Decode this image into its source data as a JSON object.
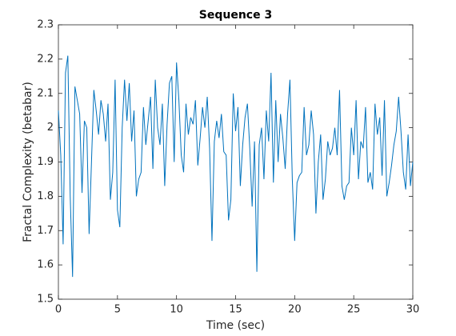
{
  "chart_data": {
    "type": "line",
    "title": "Sequence 3",
    "x_label": "Time (sec)",
    "y_label": "Fractal Complexity (betabar)",
    "x": [
      0,
      0.2,
      0.4,
      0.6,
      0.8,
      1,
      1.2,
      1.4,
      1.6,
      1.8,
      2,
      2.2,
      2.4,
      2.6,
      2.8,
      3,
      3.2,
      3.4,
      3.6,
      3.8,
      4,
      4.2,
      4.4,
      4.6,
      4.8,
      5,
      5.2,
      5.4,
      5.6,
      5.8,
      6,
      6.2,
      6.4,
      6.6,
      6.8,
      7,
      7.2,
      7.4,
      7.6,
      7.8,
      8,
      8.2,
      8.4,
      8.6,
      8.8,
      9,
      9.2,
      9.4,
      9.6,
      9.8,
      10,
      10.2,
      10.4,
      10.6,
      10.8,
      11,
      11.2,
      11.4,
      11.6,
      11.8,
      12,
      12.2,
      12.4,
      12.6,
      12.8,
      13,
      13.2,
      13.4,
      13.6,
      13.8,
      14,
      14.2,
      14.4,
      14.6,
      14.8,
      15,
      15.2,
      15.4,
      15.6,
      15.8,
      16,
      16.2,
      16.4,
      16.6,
      16.8,
      17,
      17.2,
      17.4,
      17.6,
      17.8,
      18,
      18.2,
      18.4,
      18.6,
      18.8,
      19,
      19.2,
      19.4,
      19.6,
      19.8,
      20,
      20.2,
      20.4,
      20.6,
      20.8,
      21,
      21.2,
      21.4,
      21.6,
      21.8,
      22,
      22.2,
      22.4,
      22.6,
      22.8,
      23,
      23.2,
      23.4,
      23.6,
      23.8,
      24,
      24.2,
      24.4,
      24.6,
      24.8,
      25,
      25.2,
      25.4,
      25.6,
      25.8,
      26,
      26.2,
      26.4,
      26.6,
      26.8,
      27,
      27.2,
      27.4,
      27.6,
      27.8,
      28,
      28.2,
      28.4,
      28.6,
      28.8,
      29,
      29.2,
      29.4,
      29.6,
      29.8,
      30
    ],
    "series": [
      {
        "color": "#0072bd",
        "values": [
          2.05,
          1.92,
          1.66,
          2.16,
          2.21,
          1.8,
          1.565,
          2.12,
          2.08,
          2.04,
          1.81,
          2.02,
          2.0,
          1.69,
          1.9,
          2.11,
          2.05,
          1.98,
          2.08,
          2.04,
          1.96,
          2.07,
          1.79,
          1.87,
          2.14,
          1.76,
          1.71,
          2.0,
          2.14,
          2.02,
          2.13,
          1.96,
          2.05,
          1.8,
          1.85,
          1.87,
          2.06,
          1.95,
          2.02,
          2.09,
          1.88,
          2.14,
          2.0,
          1.95,
          2.07,
          1.83,
          2.01,
          2.13,
          2.15,
          1.9,
          2.19,
          2.08,
          1.92,
          1.87,
          2.07,
          1.98,
          2.03,
          2.01,
          2.08,
          1.89,
          1.97,
          2.06,
          2.0,
          2.09,
          1.94,
          1.67,
          1.96,
          2.02,
          1.97,
          2.04,
          1.93,
          1.92,
          1.73,
          1.79,
          2.1,
          1.99,
          2.06,
          1.83,
          1.95,
          2.03,
          2.07,
          1.94,
          1.77,
          1.96,
          1.58,
          1.95,
          2.0,
          1.85,
          2.05,
          1.96,
          2.16,
          1.84,
          2.08,
          1.9,
          2.04,
          1.97,
          1.88,
          2.04,
          2.14,
          1.85,
          1.67,
          1.84,
          1.86,
          1.87,
          2.06,
          1.92,
          1.95,
          2.05,
          1.98,
          1.75,
          1.9,
          1.98,
          1.79,
          1.85,
          1.96,
          1.92,
          1.94,
          2.0,
          1.92,
          2.11,
          1.83,
          1.79,
          1.83,
          1.84,
          2.0,
          1.92,
          2.08,
          1.85,
          1.96,
          1.94,
          2.06,
          1.84,
          1.87,
          1.82,
          2.07,
          1.98,
          2.03,
          1.86,
          2.08,
          1.8,
          1.84,
          1.89,
          1.95,
          1.99,
          2.09,
          1.99,
          1.87,
          1.82,
          1.98,
          1.83,
          1.9
        ]
      }
    ],
    "xlim": [
      0,
      30
    ],
    "xticks": [
      0,
      5,
      10,
      15,
      20,
      25,
      30
    ],
    "ylim": [
      1.5,
      2.3
    ],
    "yticks": [
      1.5,
      1.6,
      1.7,
      1.8,
      1.9,
      2,
      2.1,
      2.2,
      2.3
    ]
  }
}
